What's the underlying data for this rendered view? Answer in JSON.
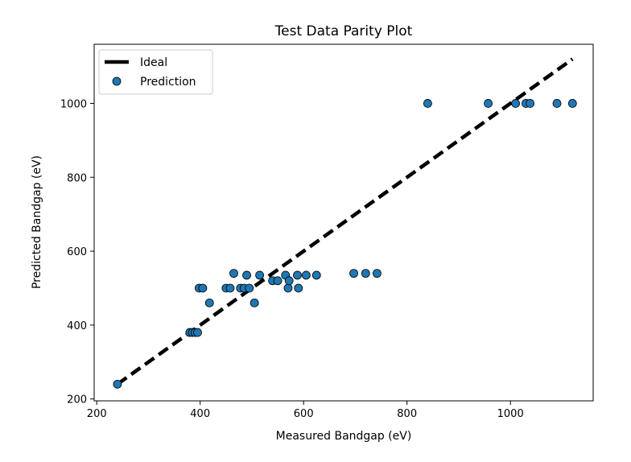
{
  "chart_data": {
    "type": "scatter",
    "title": "Test Data Parity Plot",
    "xlabel": "Measured Bandgap (eV)",
    "ylabel": "Predicted Bandgap (eV)",
    "xlim": [
      195,
      1160
    ],
    "ylim": [
      195,
      1160
    ],
    "xticks": [
      200,
      400,
      600,
      800,
      1000
    ],
    "yticks": [
      200,
      400,
      600,
      800,
      1000
    ],
    "grid": false,
    "legend_position": "top-left",
    "series": [
      {
        "name": "Ideal",
        "kind": "line",
        "style": "dashed",
        "color": "#000000",
        "x": [
          240,
          1120
        ],
        "y": [
          240,
          1120
        ]
      },
      {
        "name": "Prediction",
        "kind": "scatter",
        "color": "#1f77b4",
        "edge_color": "#000000",
        "x": [
          240,
          380,
          385,
          390,
          395,
          398,
          405,
          418,
          450,
          458,
          465,
          478,
          485,
          490,
          495,
          505,
          515,
          540,
          550,
          565,
          570,
          572,
          588,
          590,
          605,
          625,
          697,
          720,
          742,
          840,
          957,
          1010,
          1030,
          1038,
          1090,
          1120
        ],
        "y": [
          240,
          380,
          380,
          380,
          380,
          500,
          500,
          460,
          500,
          500,
          540,
          500,
          500,
          535,
          500,
          460,
          535,
          520,
          520,
          535,
          500,
          520,
          535,
          500,
          535,
          535,
          540,
          540,
          540,
          1000,
          1000,
          1000,
          1000,
          1000,
          1000,
          1000
        ]
      }
    ]
  }
}
